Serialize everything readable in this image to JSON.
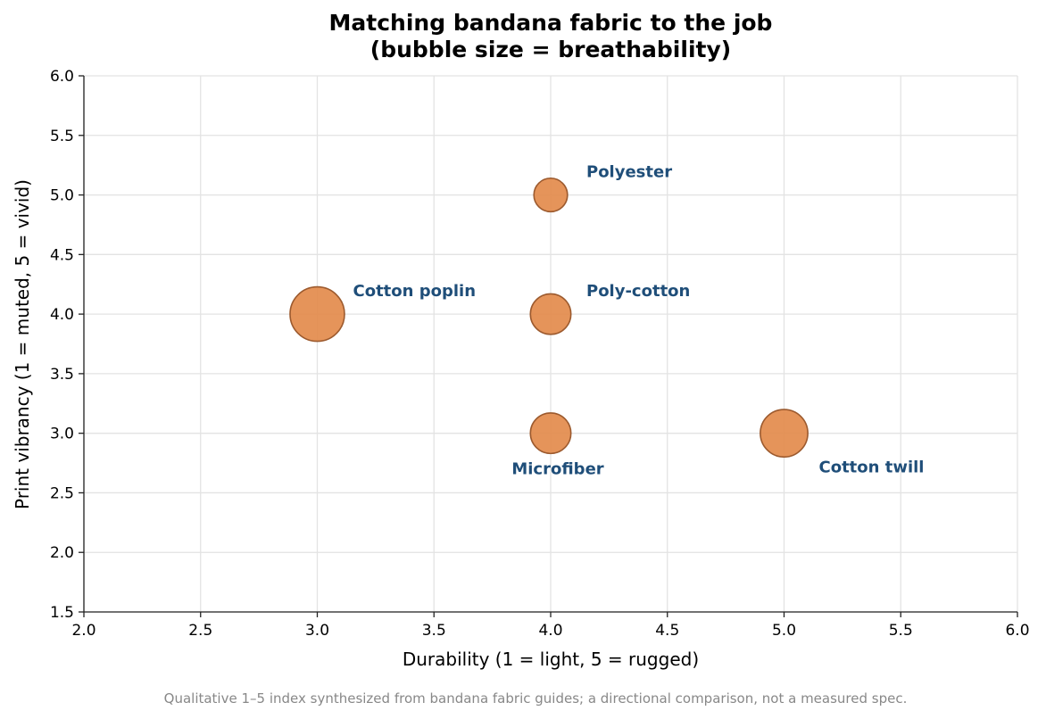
{
  "chart_data": {
    "type": "scatter",
    "title": "Matching bandana fabric to the job",
    "subtitle": "(bubble size = breathability)",
    "xlabel": "Durability  (1 = light, 5 = rugged)",
    "ylabel": "Print vibrancy  (1 = muted, 5 = vivid)",
    "xlim": [
      2.0,
      6.0
    ],
    "ylim": [
      1.5,
      6.0
    ],
    "xticks": [
      "2.0",
      "2.5",
      "3.0",
      "3.5",
      "4.0",
      "4.5",
      "5.0",
      "5.5",
      "6.0"
    ],
    "yticks": [
      "1.5",
      "2.0",
      "2.5",
      "3.0",
      "3.5",
      "4.0",
      "4.5",
      "5.0",
      "5.5",
      "6.0"
    ],
    "grid": true,
    "points": [
      {
        "label": "Cotton poplin",
        "x": 3.0,
        "y": 4.0,
        "breathability": 5,
        "label_pos": "upper-right"
      },
      {
        "label": "Polyester",
        "x": 4.0,
        "y": 5.0,
        "breathability": 2,
        "label_pos": "upper-right"
      },
      {
        "label": "Poly-cotton",
        "x": 4.0,
        "y": 4.0,
        "breathability": 3,
        "label_pos": "upper-right"
      },
      {
        "label": "Microfiber",
        "x": 4.0,
        "y": 3.0,
        "breathability": 3,
        "label_pos": "below"
      },
      {
        "label": "Cotton twill",
        "x": 5.0,
        "y": 3.0,
        "breathability": 4,
        "label_pos": "lower-right"
      }
    ],
    "colors": {
      "bubble_fill": "#e38b4c",
      "bubble_edge": "#9c5a2e",
      "label": "#1f4e79"
    }
  },
  "footnote": "Qualitative 1–5 index synthesized from bandana fabric guides; a directional comparison, not a measured spec."
}
